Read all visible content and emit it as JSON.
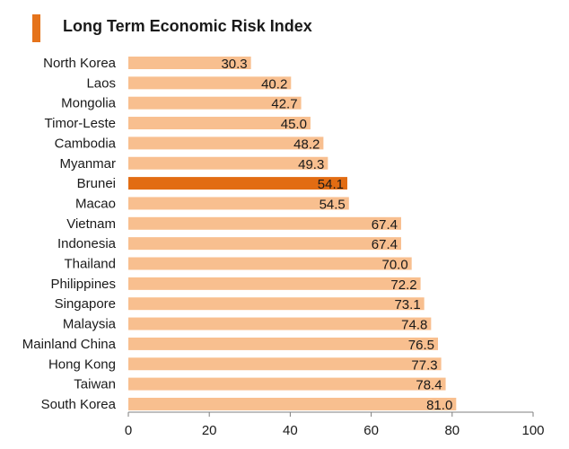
{
  "chart_data": {
    "type": "bar",
    "orientation": "horizontal",
    "title": "Long Term Economic Risk Index",
    "categories": [
      "North Korea",
      "Laos",
      "Mongolia",
      "Timor-Leste",
      "Cambodia",
      "Myanmar",
      "Brunei",
      "Macao",
      "Vietnam",
      "Indonesia",
      "Thailand",
      "Philippines",
      "Singapore",
      "Malaysia",
      "Mainland China",
      "Hong Kong",
      "Taiwan",
      "South Korea"
    ],
    "values": [
      30.3,
      40.2,
      42.7,
      45.0,
      48.2,
      49.3,
      54.1,
      54.5,
      67.4,
      67.4,
      70.0,
      72.2,
      73.1,
      74.8,
      76.5,
      77.3,
      78.4,
      81.0
    ],
    "value_labels": [
      "30.3",
      "40.2",
      "42.7",
      "45.0",
      "48.2",
      "49.3",
      "54.1",
      "54.5",
      "67.4",
      "67.4",
      "70.0",
      "72.2",
      "73.1",
      "74.8",
      "76.5",
      "77.3",
      "78.4",
      "81.0"
    ],
    "highlight": "Brunei",
    "xlim": [
      0,
      100
    ],
    "xticks": [
      0,
      20,
      40,
      60,
      80,
      100
    ],
    "xlabel": "",
    "ylabel": "",
    "grid": false,
    "colors": {
      "bar": "#f8bf8f",
      "highlight": "#e26c12",
      "accent": "#e5731b",
      "axis": "#7f7f7f",
      "text": "#1a1a1a"
    }
  }
}
